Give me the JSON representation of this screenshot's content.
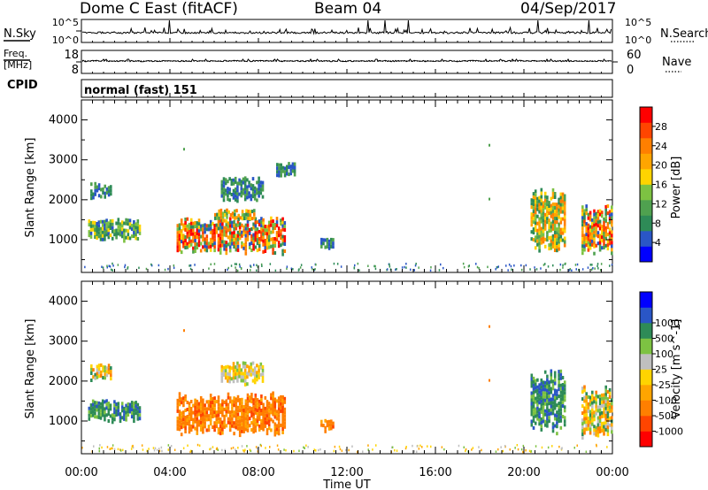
{
  "header": {
    "station": "Dome C East (fitACF)",
    "beam": "Beam 04",
    "date": "04/Sep/2017"
  },
  "strip_sky": {
    "left_label": "N.Sky",
    "tick_top": "10^5",
    "tick_bottom": "10^0",
    "right_label": "N.Search",
    "right_tick_top": "10^5",
    "right_tick_bottom": "10^0"
  },
  "strip_freq": {
    "left_label": "Freq.",
    "left_unit": "[MHz]",
    "tick_top": "18",
    "tick_bottom": "8",
    "right_label": "Nave",
    "right_tick_top": "60",
    "right_tick_bottom": "0"
  },
  "cpid": {
    "label": "CPID",
    "text": "normal (fast) 151"
  },
  "x_axis": {
    "label": "Time UT",
    "ticks": [
      "00:00",
      "04:00",
      "08:00",
      "12:00",
      "16:00",
      "20:00",
      "00:00"
    ]
  },
  "colors": {
    "power_scale": [
      "#0000ff",
      "#2a56c6",
      "#2e8b57",
      "#4fa14f",
      "#7dc242",
      "#ffd400",
      "#ffa500",
      "#ff7f00",
      "#ff4500",
      "#ff0000"
    ],
    "velocity_scale": [
      "#ff0000",
      "#ff4500",
      "#ff7f00",
      "#ffa500",
      "#ffd400",
      "#bfbfbf",
      "#7dc242",
      "#2e8b57",
      "#2a56c6",
      "#0000ff"
    ]
  },
  "chart_data": [
    {
      "type": "heatmap",
      "panel": "power",
      "ylabel": "Slant Range [km]",
      "xlabel": "Time UT",
      "ylim": [
        180,
        4500
      ],
      "yticks": [
        "1000",
        "2000",
        "3000",
        "4000"
      ],
      "xlim_hours": [
        0,
        24
      ],
      "colorbar": {
        "label": "Power [dB]",
        "range": [
          0,
          32
        ],
        "ticks": [
          "4",
          "8",
          "12",
          "16",
          "20",
          "24",
          "28"
        ]
      },
      "regions": [
        {
          "t": [
            0.3,
            2.6
          ],
          "range": [
            1000,
            1550
          ],
          "level": "medium-low"
        },
        {
          "t": [
            0.4,
            1.3
          ],
          "range": [
            2050,
            2450
          ],
          "level": "low"
        },
        {
          "t": [
            4.3,
            9.2
          ],
          "range": [
            650,
            1600
          ],
          "level": "high"
        },
        {
          "t": [
            6.0,
            7.8
          ],
          "range": [
            1500,
            1800
          ],
          "level": "medium"
        },
        {
          "t": [
            6.3,
            8.2
          ],
          "range": [
            2000,
            2600
          ],
          "level": "low"
        },
        {
          "t": [
            8.8,
            9.6
          ],
          "range": [
            2600,
            2950
          ],
          "level": "low"
        },
        {
          "t": [
            10.8,
            11.4
          ],
          "range": [
            750,
            1050
          ],
          "level": "low"
        },
        {
          "t": [
            20.3,
            21.8
          ],
          "range": [
            700,
            2300
          ],
          "level": "medium"
        },
        {
          "t": [
            22.6,
            24.0
          ],
          "range": [
            600,
            1900
          ],
          "level": "high"
        }
      ]
    },
    {
      "type": "heatmap",
      "panel": "velocity",
      "ylabel": "Slant Range [km]",
      "xlabel": "Time UT",
      "ylim": [
        180,
        4500
      ],
      "yticks": [
        "1000",
        "2000",
        "3000",
        "4000"
      ],
      "xlim_hours": [
        0,
        24
      ],
      "colorbar": {
        "label": "Velocity [m s^-1]",
        "range": [
          -1250,
          1250
        ],
        "ticks": [
          "-1000",
          "-500",
          "-100",
          "-25",
          "25",
          "100",
          "500",
          "1000"
        ]
      },
      "regions": [
        {
          "t": [
            0.3,
            2.6
          ],
          "range": [
            1000,
            1550
          ],
          "level": "positive"
        },
        {
          "t": [
            0.4,
            1.3
          ],
          "range": [
            2050,
            2450
          ],
          "level": "mixed"
        },
        {
          "t": [
            4.3,
            9.2
          ],
          "range": [
            650,
            1750
          ],
          "level": "negative"
        },
        {
          "t": [
            6.3,
            8.2
          ],
          "range": [
            1900,
            2500
          ],
          "level": "near-zero"
        },
        {
          "t": [
            10.8,
            11.4
          ],
          "range": [
            750,
            1050
          ],
          "level": "negative"
        },
        {
          "t": [
            20.3,
            21.8
          ],
          "range": [
            700,
            2300
          ],
          "level": "positive"
        },
        {
          "t": [
            22.6,
            24.0
          ],
          "range": [
            600,
            1900
          ],
          "level": "mixed"
        }
      ]
    }
  ]
}
